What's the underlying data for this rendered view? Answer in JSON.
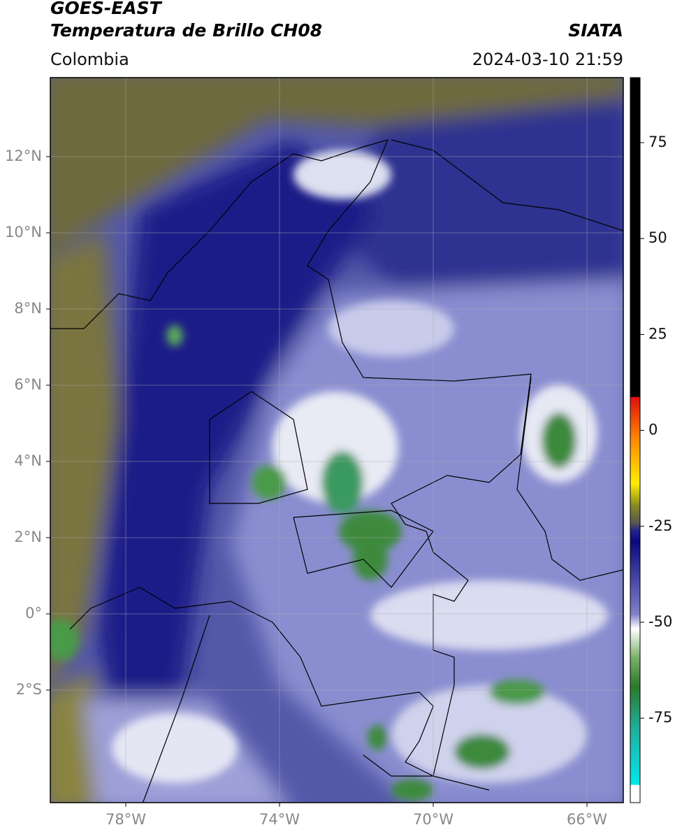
{
  "header": {
    "title": "GOES-EAST",
    "subtitle": "Temperatura de Brillo CH08",
    "source": "SIATA",
    "region": "Colombia",
    "datetime": "2024-03-10 21:59"
  },
  "map": {
    "lat_labels": [
      "12°N",
      "10°N",
      "8°N",
      "6°N",
      "4°N",
      "2°N",
      "0°",
      "2°S"
    ],
    "lon_labels": [
      "78°W",
      "74°W",
      "70°W",
      "66°W"
    ]
  },
  "colorbar": {
    "ticks": [
      75,
      50,
      25,
      0,
      -25,
      -50,
      -75
    ]
  }
}
